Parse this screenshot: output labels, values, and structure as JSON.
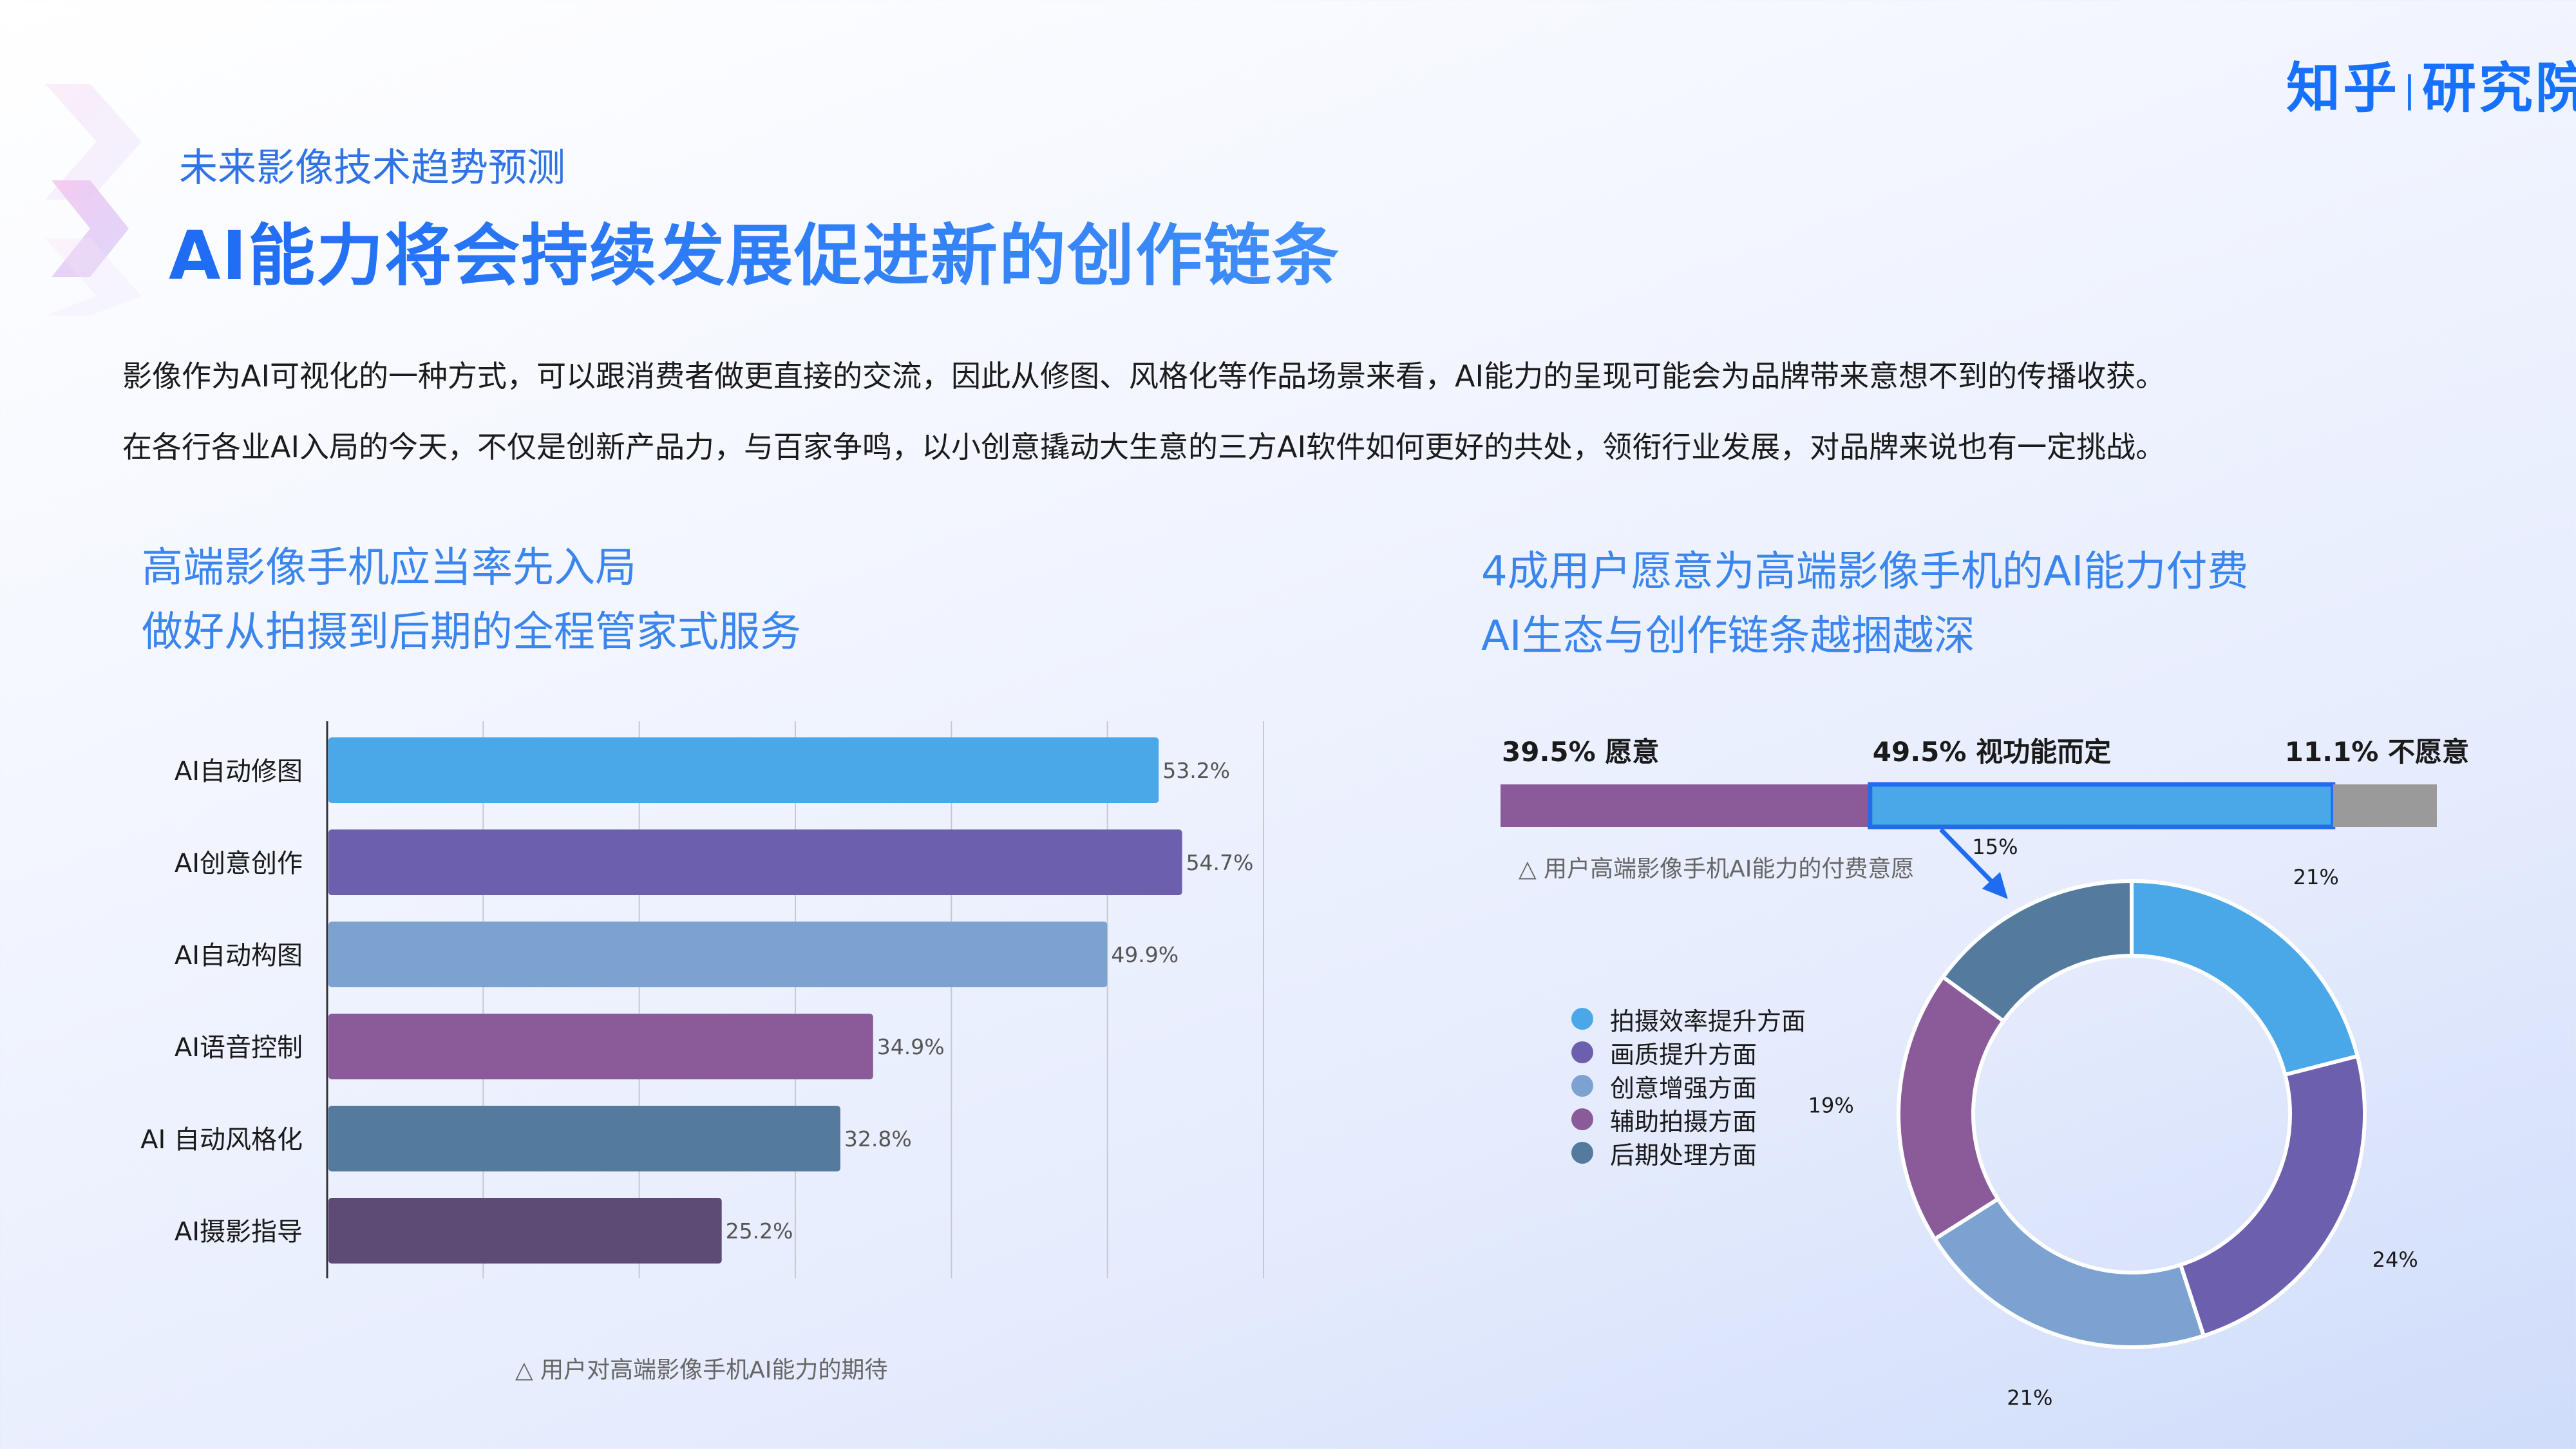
{
  "header": {
    "subtitle": "未来影像技术趋势预测",
    "title": "AI能力将会持续发展促进新的创作链条",
    "logo_left": "知乎",
    "logo_sep": "|",
    "logo_right": "研究院"
  },
  "intro": {
    "line1": "影像作为AI可视化的一种方式，可以跟消费者做更直接的交流，因此从修图、风格化等作品场景来看，AI能力的呈现可能会为品牌带来意想不到的传播收获。",
    "line2": "在各行各业AI入局的今天，不仅是创新产品力，与百家争鸣，以小创意撬动大生意的三方AI软件如何更好的共处，领衔行业发展，对品牌来说也有一定挑战。"
  },
  "left_panel": {
    "heading1": "高端影像手机应当率先入局",
    "heading2": "做好从拍摄到后期的全程管家式服务",
    "caption": "△ 用户对高端影像手机AI能力的期待"
  },
  "right_panel": {
    "heading1": "4成用户愿意为高端影像手机的AI能力付费",
    "heading2": "AI生态与创作链条越捆越深",
    "caption": "△ 用户高端影像手机AI能力的付费意愿"
  },
  "chart_data": [
    {
      "type": "bar",
      "orientation": "horizontal",
      "categories": [
        "AI自动修图",
        "AI创意创作",
        "AI自动构图",
        "AI语音控制",
        "AI 自动风格化",
        "AI摄影指导"
      ],
      "values": [
        53.2,
        54.7,
        49.9,
        34.9,
        32.8,
        25.2
      ],
      "value_labels": [
        "53.2%",
        "54.7%",
        "49.9%",
        "34.9%",
        "32.8%",
        "25.2%"
      ],
      "colors": [
        "#4aa8e8",
        "#6b5fae",
        "#7ba2d0",
        "#8a5b98",
        "#547a9e",
        "#5d4a75"
      ],
      "xlim": [
        0,
        60
      ],
      "grid": true
    },
    {
      "type": "bar",
      "orientation": "stacked-horizontal",
      "segments": [
        {
          "label": "39.5% 愿意",
          "value": 39.5,
          "color": "#8a5b98"
        },
        {
          "label": "49.5% 视功能而定",
          "value": 49.5,
          "color": "#4aa8e8",
          "highlight": "#1f6cf0"
        },
        {
          "label": "11.1% 不愿意",
          "value": 11.1,
          "color": "#9a9a9a"
        }
      ]
    },
    {
      "type": "pie",
      "style": "donut",
      "legend_position": "left",
      "slices": [
        {
          "name": "拍摄效率提升方面",
          "value": 21,
          "label": "21%",
          "color": "#4aa8e8"
        },
        {
          "name": "画质提升方面",
          "value": 24,
          "label": "24%",
          "color": "#6b5fae"
        },
        {
          "name": "创意增强方面",
          "value": 21,
          "label": "21%",
          "color": "#7ba2d0"
        },
        {
          "name": "辅助拍摄方面",
          "value": 19,
          "label": "19%",
          "color": "#8a5b98"
        },
        {
          "name": "后期处理方面",
          "value": 15,
          "label": "15%",
          "color": "#547a9e"
        }
      ]
    }
  ]
}
